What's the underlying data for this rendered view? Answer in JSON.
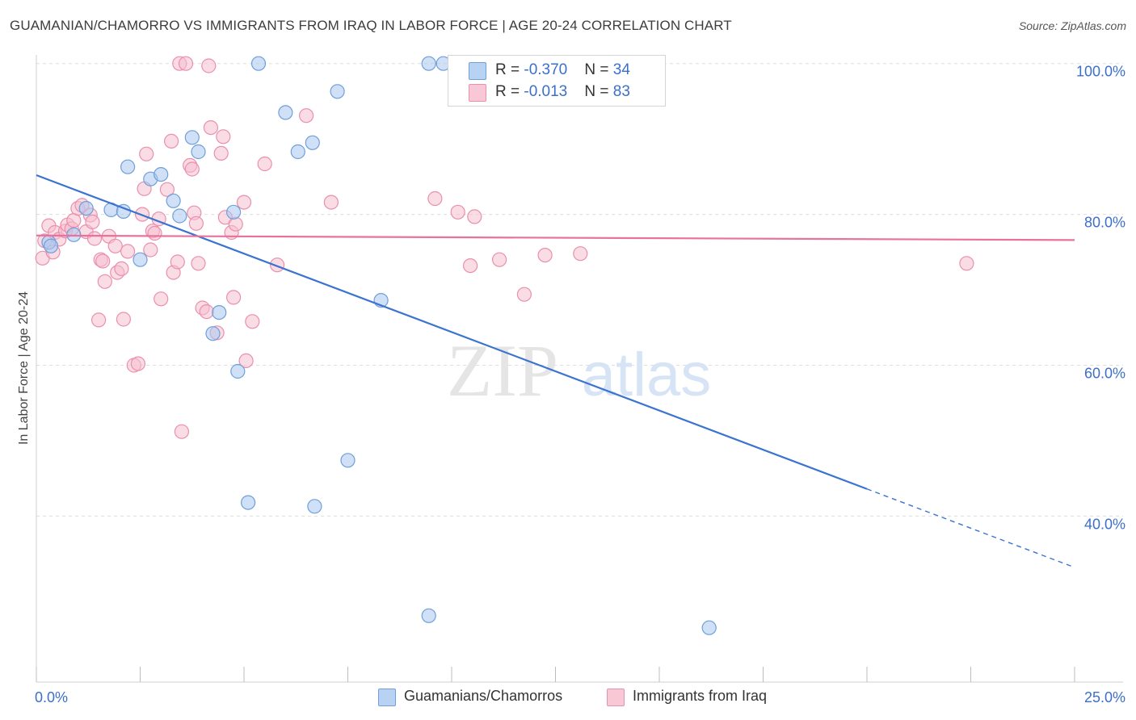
{
  "header": {
    "title": "GUAMANIAN/CHAMORRO VS IMMIGRANTS FROM IRAQ IN LABOR FORCE | AGE 20-24 CORRELATION CHART",
    "source": "Source: ZipAtlas.com"
  },
  "watermark": {
    "zip": "ZIP",
    "atlas": "atlas"
  },
  "legend": {
    "rows": [
      {
        "r_label": "R = ",
        "r_value": "-0.370",
        "n_label": "N = ",
        "n_value": "34"
      },
      {
        "r_label": "R = ",
        "r_value": "-0.013",
        "n_label": "N = ",
        "n_value": "83"
      }
    ]
  },
  "bottom_legend": {
    "series1": "Guamanians/Chamorros",
    "series2": "Immigrants from Iraq"
  },
  "colors": {
    "series1_fill": "#aac8f0",
    "series1_stroke": "#6f9fd8",
    "series1_line": "#3a73d0",
    "series2_fill": "#f6bfd0",
    "series2_stroke": "#ea8fae",
    "series2_line": "#e8729b",
    "tick_label": "#3b6fc9",
    "grid": "#dddddd"
  },
  "chart_data": {
    "type": "scatter",
    "title": "GUAMANIAN/CHAMORRO VS IMMIGRANTS FROM IRAQ IN LABOR FORCE | AGE 20-24 CORRELATION CHART",
    "xlabel": "",
    "ylabel": "In Labor Force | Age 20-24",
    "xlim": [
      0,
      25
    ],
    "ylim": [
      18,
      102
    ],
    "x_tick_labels": [
      "0.0%",
      "25.0%"
    ],
    "y_ticks": [
      40,
      60,
      80,
      100
    ],
    "y_tick_labels": [
      "40.0%",
      "60.0%",
      "80.0%",
      "100.0%"
    ],
    "grid": true,
    "legend_position": "top-center",
    "series": [
      {
        "name": "Guamanians/Chamorros",
        "points": [
          [
            0.3,
            76.3
          ],
          [
            0.35,
            75.8
          ],
          [
            0.9,
            77.3
          ],
          [
            1.2,
            80.8
          ],
          [
            1.8,
            80.6
          ],
          [
            2.1,
            80.4
          ],
          [
            2.2,
            86.3
          ],
          [
            2.5,
            74.0
          ],
          [
            2.75,
            84.7
          ],
          [
            3.0,
            85.3
          ],
          [
            3.3,
            81.8
          ],
          [
            3.45,
            79.8
          ],
          [
            3.75,
            90.2
          ],
          [
            3.9,
            88.3
          ],
          [
            4.25,
            64.2
          ],
          [
            4.4,
            67.0
          ],
          [
            4.75,
            80.3
          ],
          [
            4.85,
            59.2
          ],
          [
            5.1,
            41.8
          ],
          [
            5.35,
            100.0
          ],
          [
            6.0,
            93.5
          ],
          [
            6.3,
            88.3
          ],
          [
            6.65,
            89.5
          ],
          [
            6.7,
            41.3
          ],
          [
            7.25,
            96.3
          ],
          [
            7.5,
            47.4
          ],
          [
            8.3,
            68.6
          ],
          [
            9.45,
            100.0
          ],
          [
            9.45,
            26.8
          ],
          [
            9.8,
            100.0
          ],
          [
            16.2,
            25.2
          ]
        ],
        "trend": {
          "x1": 0,
          "y1": 85.2,
          "x2": 20.0,
          "y2": 43.6,
          "dash_to_x": 25,
          "dash_to_y": 33.2
        }
      },
      {
        "name": "Immigrants from Iraq",
        "points": [
          [
            0.15,
            74.2
          ],
          [
            0.2,
            76.5
          ],
          [
            0.3,
            78.5
          ],
          [
            0.4,
            75.0
          ],
          [
            0.45,
            77.6
          ],
          [
            0.55,
            76.7
          ],
          [
            0.7,
            77.8
          ],
          [
            0.75,
            78.6
          ],
          [
            0.85,
            78.1
          ],
          [
            0.9,
            79.2
          ],
          [
            1.0,
            80.8
          ],
          [
            1.1,
            81.2
          ],
          [
            1.2,
            77.7
          ],
          [
            1.3,
            79.9
          ],
          [
            1.35,
            79.0
          ],
          [
            1.4,
            76.8
          ],
          [
            1.5,
            66.0
          ],
          [
            1.55,
            74.0
          ],
          [
            1.6,
            73.8
          ],
          [
            1.65,
            71.1
          ],
          [
            1.75,
            77.1
          ],
          [
            1.9,
            75.8
          ],
          [
            1.95,
            72.3
          ],
          [
            2.05,
            72.8
          ],
          [
            2.1,
            66.1
          ],
          [
            2.2,
            75.1
          ],
          [
            2.35,
            60.0
          ],
          [
            2.45,
            60.2
          ],
          [
            2.55,
            80.0
          ],
          [
            2.6,
            83.4
          ],
          [
            2.65,
            88.0
          ],
          [
            2.75,
            75.3
          ],
          [
            2.8,
            77.8
          ],
          [
            2.85,
            77.5
          ],
          [
            2.95,
            79.4
          ],
          [
            3.0,
            68.8
          ],
          [
            3.15,
            83.3
          ],
          [
            3.25,
            89.7
          ],
          [
            3.3,
            72.3
          ],
          [
            3.4,
            73.7
          ],
          [
            3.45,
            100.0
          ],
          [
            3.5,
            51.2
          ],
          [
            3.6,
            100.0
          ],
          [
            3.7,
            86.5
          ],
          [
            3.75,
            86.0
          ],
          [
            3.8,
            80.2
          ],
          [
            3.85,
            78.8
          ],
          [
            3.9,
            73.5
          ],
          [
            4.0,
            67.6
          ],
          [
            4.1,
            67.1
          ],
          [
            4.15,
            99.7
          ],
          [
            4.2,
            91.5
          ],
          [
            4.35,
            64.3
          ],
          [
            4.45,
            88.1
          ],
          [
            4.5,
            90.3
          ],
          [
            4.55,
            79.6
          ],
          [
            4.7,
            77.6
          ],
          [
            4.75,
            69.0
          ],
          [
            4.8,
            78.7
          ],
          [
            5.0,
            81.6
          ],
          [
            5.05,
            60.6
          ],
          [
            5.2,
            65.8
          ],
          [
            5.5,
            86.7
          ],
          [
            5.8,
            73.3
          ],
          [
            6.5,
            93.1
          ],
          [
            7.1,
            81.6
          ],
          [
            9.6,
            82.1
          ],
          [
            10.15,
            80.3
          ],
          [
            10.45,
            73.2
          ],
          [
            10.55,
            79.7
          ],
          [
            11.15,
            74.0
          ],
          [
            11.75,
            69.4
          ],
          [
            12.25,
            74.6
          ],
          [
            13.1,
            74.8
          ],
          [
            22.4,
            73.5
          ]
        ],
        "trend": {
          "x1": 0,
          "y1": 77.2,
          "x2": 25,
          "y2": 76.6
        }
      }
    ]
  }
}
